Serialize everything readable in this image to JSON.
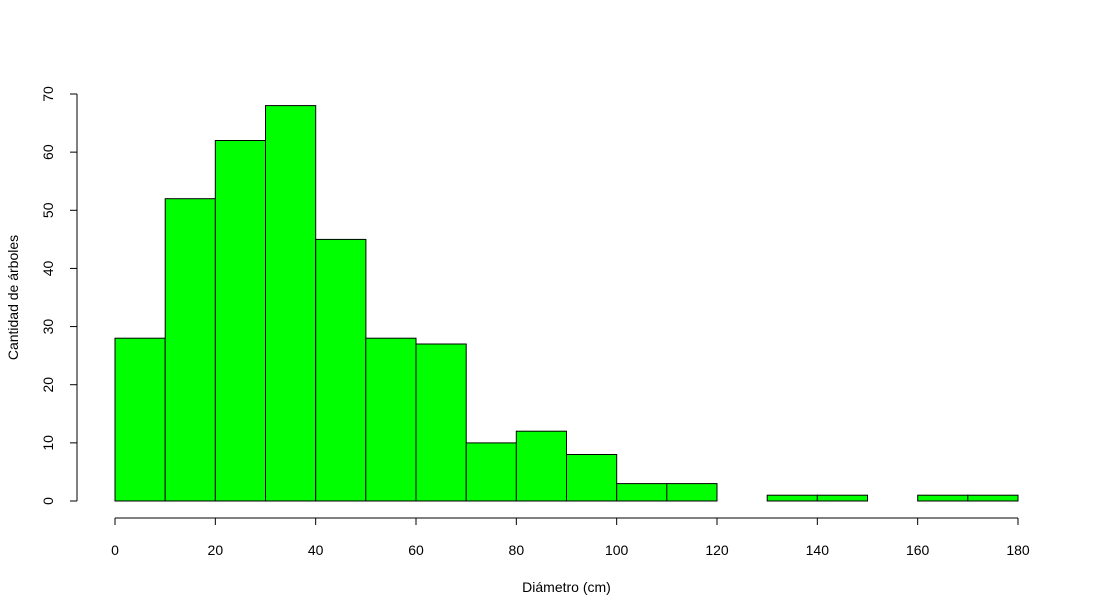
{
  "chart_data": {
    "type": "bar",
    "title": "",
    "xlabel": "Diámetro (cm)",
    "ylabel": "Cantidad de árboles",
    "bin_edges": [
      0,
      10,
      20,
      30,
      40,
      50,
      60,
      70,
      80,
      90,
      100,
      110,
      120,
      130,
      140,
      150,
      160,
      170,
      180
    ],
    "values": [
      28,
      52,
      62,
      68,
      45,
      28,
      27,
      10,
      12,
      8,
      3,
      3,
      0,
      1,
      1,
      0,
      1,
      1
    ],
    "xlim": [
      0,
      180
    ],
    "ylim": [
      0,
      70
    ],
    "x_ticks": [
      "0",
      "20",
      "40",
      "60",
      "80",
      "100",
      "120",
      "140",
      "160",
      "180"
    ],
    "y_ticks": [
      "0",
      "10",
      "20",
      "30",
      "40",
      "50",
      "60",
      "70"
    ],
    "bar_color": "#00ff00",
    "grid": false,
    "legend": "none"
  }
}
